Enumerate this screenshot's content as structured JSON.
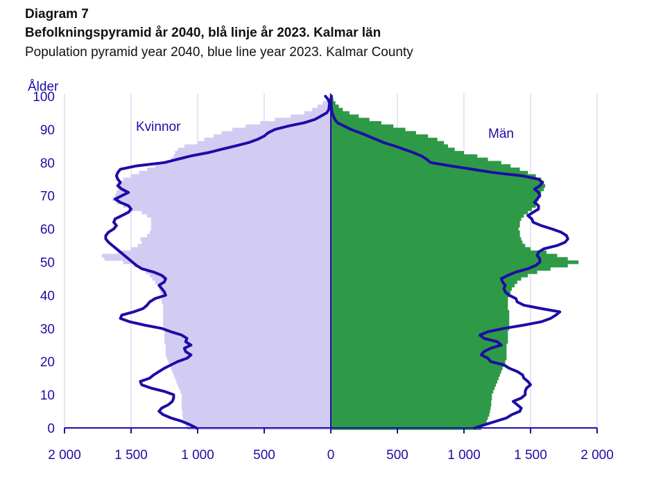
{
  "header": {
    "label": "Diagram 7",
    "title": "Befolkningspyramid år 2040, blå linje år 2023. Kalmar län",
    "subtitle": "Population pyramid year 2040, blue line year 2023. Kalmar County"
  },
  "chart_data": {
    "type": "bar",
    "orientation": "horizontal-pyramid",
    "ylabel": "Ålder",
    "xlim": [
      -2000,
      2000
    ],
    "ylim": [
      0,
      100
    ],
    "x_ticks": [
      -2000,
      -1500,
      -1000,
      -500,
      0,
      500,
      1000,
      1500,
      2000
    ],
    "x_tick_labels": [
      "2 000",
      "1 500",
      "1 000",
      "500",
      "0",
      "500",
      "1 000",
      "1 500",
      "2 000"
    ],
    "y_ticks": [
      0,
      10,
      20,
      30,
      40,
      50,
      60,
      70,
      80,
      90,
      100
    ],
    "y_tick_labels": [
      "0",
      "10",
      "20",
      "30",
      "40",
      "50",
      "60",
      "70",
      "80",
      "90",
      "100"
    ],
    "grid": "vertical",
    "colors": {
      "women_2040": "#d3ccf2",
      "men_2040": "#2e9a47",
      "line_2023": "#1d0ca6",
      "axis": "#1d0ca6",
      "grid": "#d6d3ef"
    },
    "series_labels": {
      "women": "Kvinnor",
      "men": "Män"
    },
    "ages": [
      0,
      1,
      2,
      3,
      4,
      5,
      6,
      7,
      8,
      9,
      10,
      11,
      12,
      13,
      14,
      15,
      16,
      17,
      18,
      19,
      20,
      21,
      22,
      23,
      24,
      25,
      26,
      27,
      28,
      29,
      30,
      31,
      32,
      33,
      34,
      35,
      36,
      37,
      38,
      39,
      40,
      41,
      42,
      43,
      44,
      45,
      46,
      47,
      48,
      49,
      50,
      51,
      52,
      53,
      54,
      55,
      56,
      57,
      58,
      59,
      60,
      61,
      62,
      63,
      64,
      65,
      66,
      67,
      68,
      69,
      70,
      71,
      72,
      73,
      74,
      75,
      76,
      77,
      78,
      79,
      80,
      81,
      82,
      83,
      84,
      85,
      86,
      87,
      88,
      89,
      90,
      91,
      92,
      93,
      94,
      95,
      96,
      97,
      98,
      99,
      100
    ],
    "series": [
      {
        "name": "Kvinnor 2040",
        "values": [
          1080,
          1090,
          1100,
          1110,
          1115,
          1115,
          1120,
          1120,
          1120,
          1120,
          1120,
          1130,
          1140,
          1150,
          1160,
          1170,
          1180,
          1190,
          1200,
          1210,
          1220,
          1230,
          1240,
          1240,
          1240,
          1240,
          1250,
          1250,
          1250,
          1250,
          1250,
          1260,
          1260,
          1260,
          1260,
          1260,
          1260,
          1260,
          1270,
          1270,
          1270,
          1280,
          1290,
          1300,
          1320,
          1340,
          1360,
          1390,
          1420,
          1480,
          1560,
          1700,
          1720,
          1600,
          1500,
          1450,
          1420,
          1430,
          1380,
          1360,
          1350,
          1350,
          1350,
          1350,
          1380,
          1420,
          1500,
          1560,
          1610,
          1640,
          1620,
          1610,
          1600,
          1590,
          1580,
          1560,
          1500,
          1440,
          1380,
          1320,
          1250,
          1200,
          1180,
          1170,
          1150,
          1100,
          1000,
          950,
          880,
          820,
          740,
          640,
          530,
          420,
          300,
          200,
          140,
          100,
          60,
          35,
          15
        ]
      },
      {
        "name": "Män 2040",
        "values": [
          1130,
          1150,
          1170,
          1180,
          1190,
          1195,
          1200,
          1205,
          1205,
          1210,
          1210,
          1220,
          1230,
          1240,
          1250,
          1260,
          1270,
          1280,
          1290,
          1300,
          1310,
          1320,
          1320,
          1320,
          1320,
          1320,
          1330,
          1330,
          1330,
          1330,
          1340,
          1340,
          1340,
          1340,
          1340,
          1340,
          1330,
          1330,
          1330,
          1330,
          1340,
          1350,
          1360,
          1380,
          1400,
          1430,
          1480,
          1550,
          1650,
          1780,
          1860,
          1780,
          1700,
          1620,
          1500,
          1460,
          1440,
          1430,
          1420,
          1420,
          1410,
          1420,
          1420,
          1430,
          1450,
          1480,
          1510,
          1540,
          1550,
          1560,
          1570,
          1580,
          1600,
          1610,
          1600,
          1580,
          1540,
          1480,
          1420,
          1350,
          1280,
          1180,
          1100,
          1000,
          930,
          880,
          850,
          800,
          730,
          640,
          560,
          470,
          380,
          290,
          210,
          140,
          90,
          60,
          35,
          20,
          5
        ]
      },
      {
        "name": "Kvinnor 2023",
        "values": [
          1010,
          1060,
          1120,
          1200,
          1260,
          1290,
          1270,
          1220,
          1190,
          1180,
          1180,
          1250,
          1350,
          1420,
          1430,
          1360,
          1330,
          1290,
          1250,
          1200,
          1150,
          1080,
          1050,
          1090,
          1100,
          1050,
          1090,
          1080,
          1120,
          1200,
          1270,
          1400,
          1510,
          1580,
          1570,
          1480,
          1410,
          1380,
          1360,
          1320,
          1240,
          1250,
          1270,
          1290,
          1250,
          1240,
          1270,
          1330,
          1420,
          1460,
          1490,
          1520,
          1550,
          1580,
          1610,
          1640,
          1670,
          1690,
          1690,
          1670,
          1630,
          1610,
          1630,
          1620,
          1570,
          1520,
          1500,
          1520,
          1580,
          1620,
          1570,
          1520,
          1570,
          1600,
          1580,
          1600,
          1610,
          1600,
          1580,
          1460,
          1250,
          1150,
          1050,
          920,
          820,
          720,
          620,
          550,
          500,
          470,
          420,
          320,
          200,
          120,
          75,
          30,
          15,
          12,
          10,
          20,
          40
        ]
      },
      {
        "name": "Män 2023",
        "values": [
          1080,
          1160,
          1240,
          1320,
          1360,
          1420,
          1430,
          1400,
          1370,
          1430,
          1460,
          1460,
          1470,
          1500,
          1480,
          1450,
          1440,
          1400,
          1340,
          1300,
          1200,
          1180,
          1130,
          1150,
          1200,
          1280,
          1250,
          1150,
          1120,
          1180,
          1300,
          1450,
          1580,
          1650,
          1690,
          1720,
          1580,
          1450,
          1400,
          1390,
          1340,
          1310,
          1300,
          1310,
          1290,
          1280,
          1330,
          1390,
          1480,
          1540,
          1570,
          1570,
          1550,
          1560,
          1600,
          1700,
          1760,
          1780,
          1770,
          1730,
          1660,
          1580,
          1520,
          1510,
          1480,
          1520,
          1560,
          1560,
          1530,
          1550,
          1570,
          1560,
          1530,
          1570,
          1590,
          1560,
          1440,
          1220,
          1060,
          900,
          750,
          720,
          680,
          620,
          550,
          480,
          400,
          340,
          280,
          220,
          150,
          100,
          50,
          30,
          20,
          10,
          5,
          3,
          3,
          1,
          5
        ]
      }
    ]
  }
}
